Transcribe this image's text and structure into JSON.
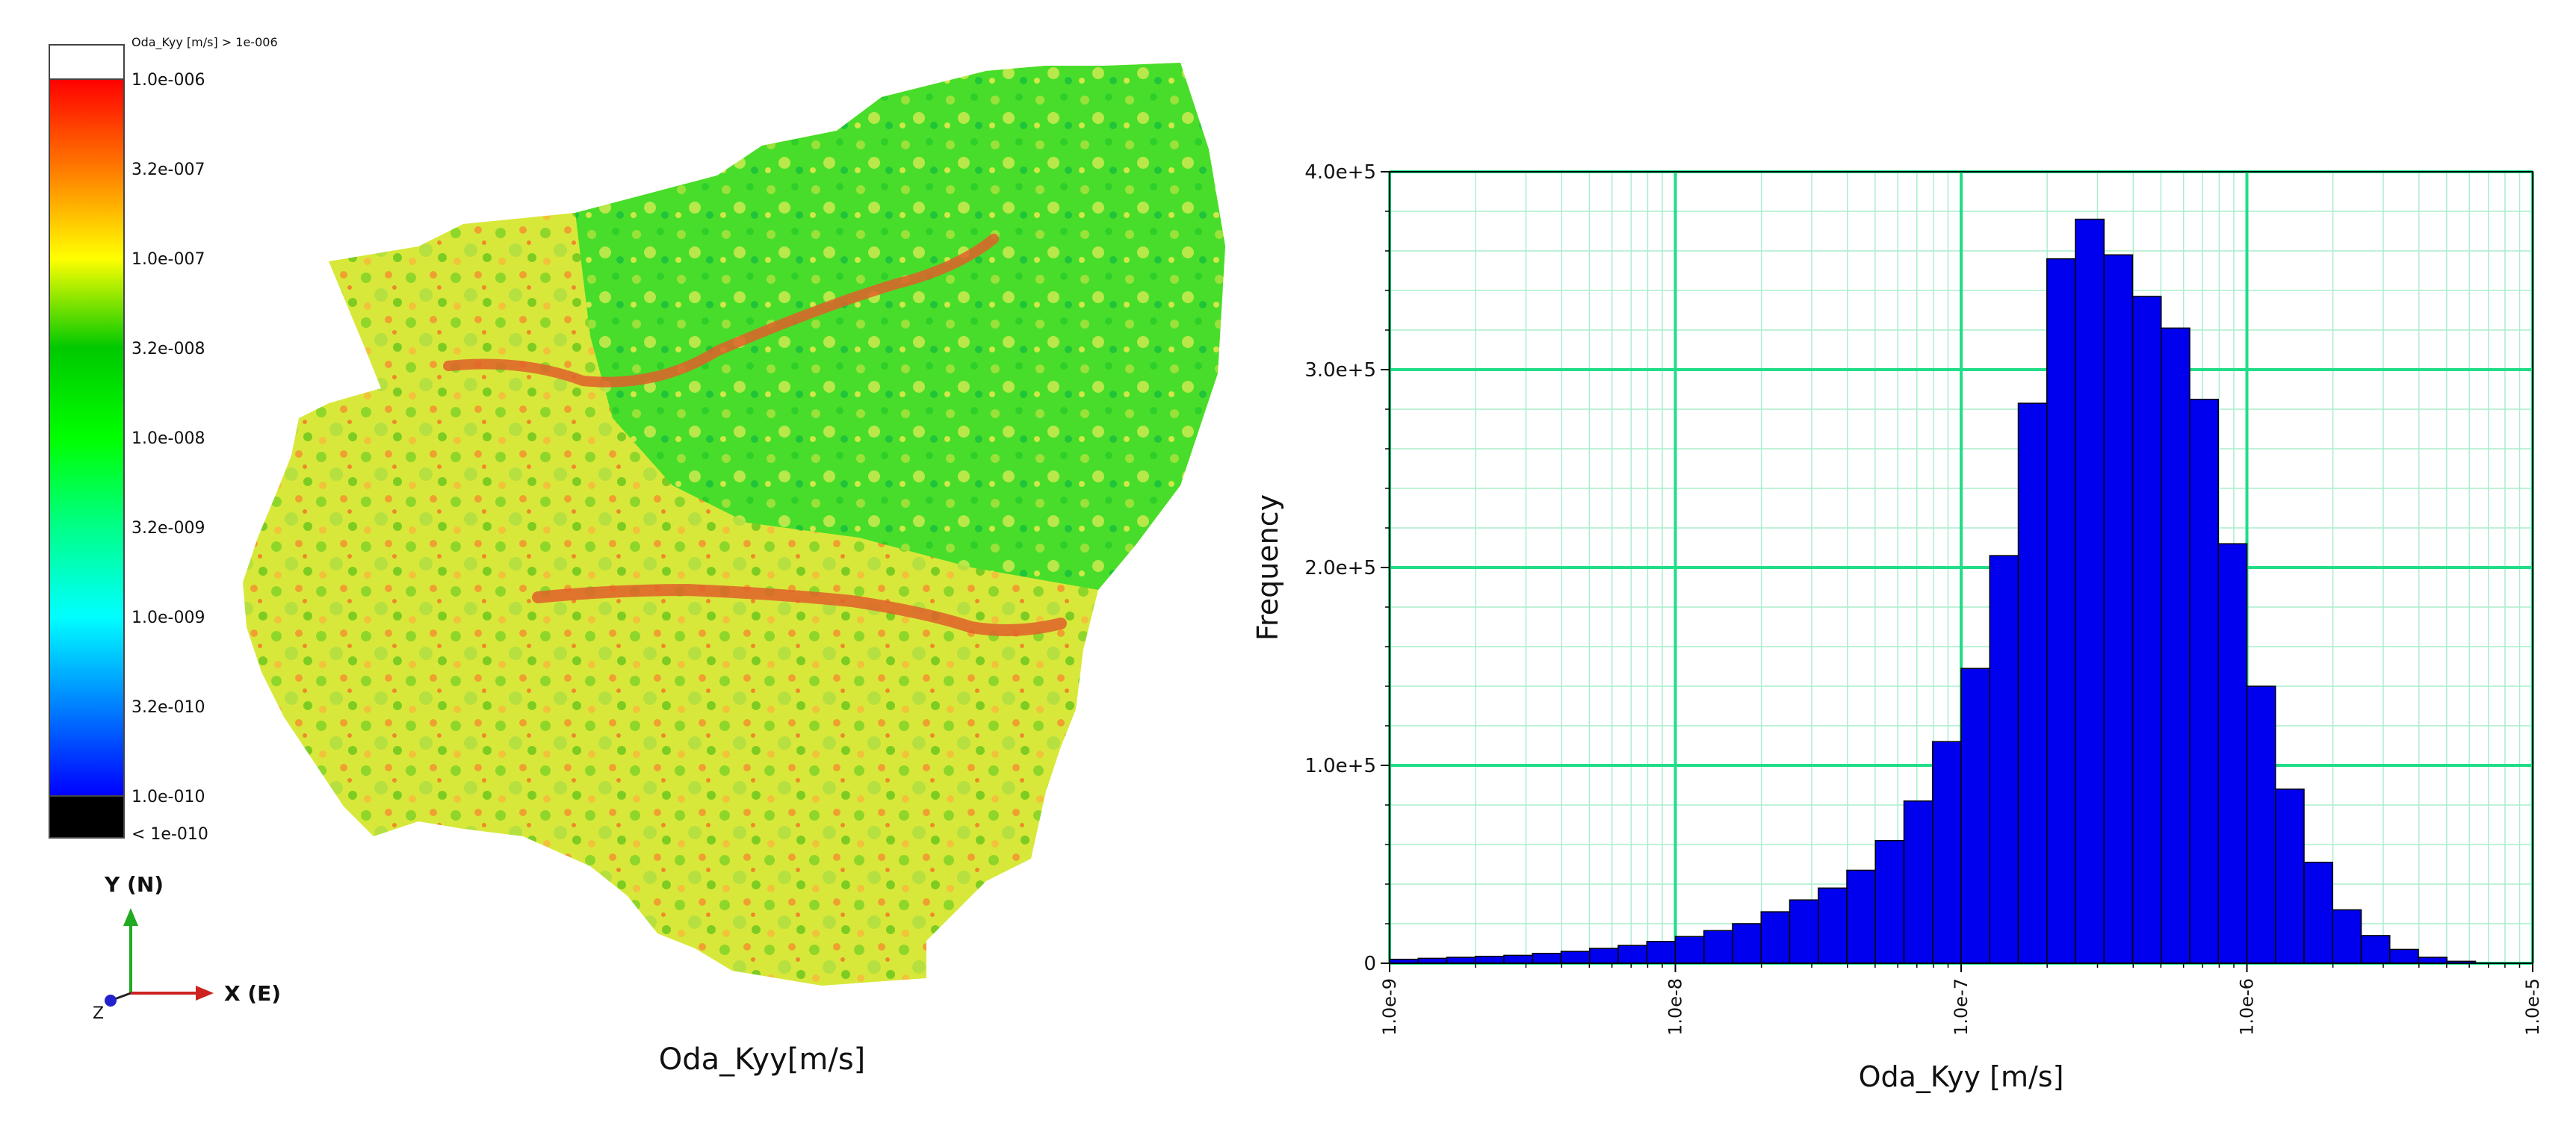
{
  "map": {
    "legend": {
      "labels": [
        "1.0e-006",
        "3.2e-007",
        "1.0e-007",
        "3.2e-008",
        "1.0e-008",
        "3.2e-009",
        "1.0e-009",
        "3.2e-010",
        "1.0e-010"
      ],
      "over_label": "Oda_Kyy [m/s] > 1e-006",
      "under_label": "< 1e-010",
      "over_color": "#ffffff",
      "under_color": "#000000",
      "colors": [
        "#ff0000",
        "#ff7f00",
        "#ffff00",
        "#00dd00",
        "#00ff00",
        "#00ff99",
        "#00ffff",
        "#0099ff",
        "#0000ff"
      ]
    },
    "axes": {
      "y_label": "Y (N)",
      "x_label": "X (E)",
      "z_label": "Z",
      "y_color": "#22aa22",
      "x_color": "#cc2222",
      "z_color": "#2222cc"
    },
    "caption": "Oda_Kyy[m/s]"
  },
  "chart_data": {
    "type": "bar",
    "xscale": "log",
    "xlim": [
      1e-09,
      1e-05
    ],
    "ylim": [
      0,
      400000
    ],
    "xlabel": "Oda_Kyy [m/s]",
    "ylabel": "Frequency",
    "x_tick_labels": [
      "1.0e-9",
      "1.0e-8",
      "1.0e-7",
      "1.0e-6",
      "1.0e-5"
    ],
    "y_tick_labels": [
      "0",
      "1.0e+5",
      "2.0e+5",
      "3.0e+5",
      "4.0e+5"
    ],
    "grid": true,
    "bar_color": "#0000ee",
    "grid_major_color": "#22dd88",
    "grid_minor_color": "#aaeecc",
    "bins_per_decade": 10,
    "bin_start": 1e-09,
    "values": [
      2000,
      2500,
      3000,
      3500,
      4000,
      5000,
      6000,
      7500,
      9000,
      11000,
      13500,
      16500,
      20000,
      26000,
      32000,
      38000,
      47000,
      62000,
      82000,
      112000,
      149000,
      206000,
      283000,
      356000,
      376000,
      358000,
      337000,
      321000,
      285000,
      212000,
      140000,
      88000,
      51000,
      27000,
      14000,
      7000,
      3000,
      1000
    ]
  }
}
